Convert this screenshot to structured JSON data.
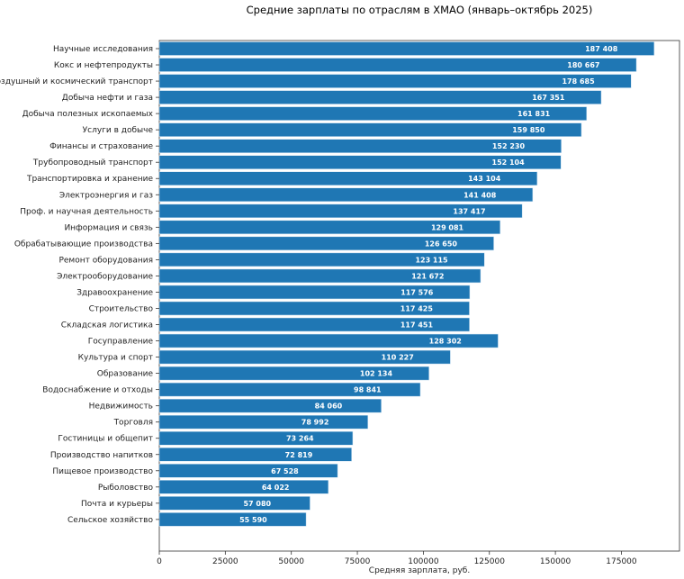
{
  "chart_data": {
    "type": "bar",
    "orientation": "horizontal",
    "title": "Средние зарплаты по отраслям в ХМАО (январь–октябрь 2025)",
    "xlabel": "Средняя зарплата, руб.",
    "ylabel": "",
    "xlim": [
      0,
      197000
    ],
    "xticks": [
      0,
      25000,
      50000,
      75000,
      100000,
      125000,
      150000,
      175000
    ],
    "grid": false,
    "bar_color": "#1f77b4",
    "categories": [
      "Научные исследования",
      "Кокс и нефтепродукты",
      "Воздушный и космический транспорт",
      "Добыча нефти и газа",
      "Добыча полезных ископаемых",
      "Услуги в добыче",
      "Финансы и страхование",
      "Трубопроводный транспорт",
      "Транспортировка и хранение",
      "Электроэнергия и газ",
      "Проф. и научная деятельность",
      "Информация и связь",
      "Обрабатывающие производства",
      "Ремонт оборудования",
      "Электрооборудование",
      "Здравоохранение",
      "Строительство",
      "Складская логистика",
      "Госуправление",
      "Культура и спорт",
      "Образование",
      "Водоснабжение и отходы",
      "Недвижимость",
      "Торговля",
      "Гостиницы и общепит",
      "Производство напитков",
      "Пищевое производство",
      "Рыболовство",
      "Почта и курьеры",
      "Сельское хозяйство"
    ],
    "values": [
      187408,
      180667,
      178685,
      167351,
      161831,
      159850,
      152230,
      152104,
      143104,
      141408,
      137417,
      129081,
      126650,
      123115,
      121672,
      117576,
      117425,
      117451,
      128302,
      110227,
      102134,
      98841,
      84060,
      78992,
      73264,
      72819,
      67528,
      64022,
      57080,
      55590
    ],
    "value_labels": [
      "187 408",
      "180 667",
      "178 685",
      "167 351",
      "161 831",
      "159 850",
      "152 230",
      "152 104",
      "143 104",
      "141 408",
      "137 417",
      "129 081",
      "126 650",
      "123 115",
      "121 672",
      "117 576",
      "117 425",
      "117 451",
      "128 302",
      "110 227",
      "102 134",
      "98 841",
      "84 060",
      "78 992",
      "73 264",
      "72 819",
      "67 528",
      "64 022",
      "57 080",
      "55 590"
    ]
  }
}
